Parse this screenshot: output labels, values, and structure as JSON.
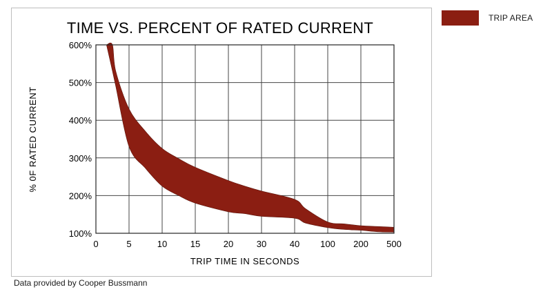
{
  "legend": {
    "label": "TRIP AREA",
    "color": "#8b1e12"
  },
  "source_note": "Data provided by Cooper Bussmann",
  "chart_data": {
    "type": "area",
    "title": "TIME VS. PERCENT OF RATED CURRENT",
    "xlabel": "TRIP TIME IN SECONDS",
    "ylabel": "% 0F RATED CURRENT",
    "x_ticks": [
      "0",
      "5",
      "10",
      "15",
      "20",
      "30",
      "40",
      "100",
      "200",
      "500"
    ],
    "y_ticks": [
      "100%",
      "200%",
      "300%",
      "400%",
      "500%",
      "600%"
    ],
    "ylim": [
      100,
      600
    ],
    "grid": true,
    "fill_color": "#8b1e12",
    "series": [
      {
        "name": "TRIP AREA",
        "x": [
          1.6,
          2.5,
          3,
          5,
          7.5,
          10,
          12.5,
          15,
          20,
          25,
          30,
          40,
          60,
          100,
          150,
          200,
          350,
          500
        ],
        "upper": [
          600,
          600,
          530,
          430,
          370,
          325,
          298,
          275,
          240,
          225,
          212,
          190,
          165,
          130,
          125,
          120,
          118,
          116
        ],
        "lower": [
          600,
          530,
          490,
          330,
          272,
          225,
          200,
          180,
          157,
          152,
          145,
          140,
          127,
          115,
          110,
          108,
          104,
          103
        ]
      }
    ]
  }
}
